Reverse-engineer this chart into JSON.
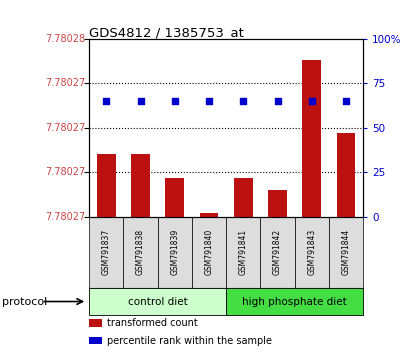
{
  "title": "GDS4812 / 1385753_at",
  "samples": [
    "GSM791837",
    "GSM791838",
    "GSM791839",
    "GSM791840",
    "GSM791841",
    "GSM791842",
    "GSM791843",
    "GSM791844"
  ],
  "bar_values_pct": [
    35,
    35,
    22,
    2,
    22,
    15,
    88,
    47
  ],
  "percentile_rank_pct": [
    65,
    65,
    65,
    65,
    65,
    65,
    65,
    65
  ],
  "ylim_right": [
    0,
    100
  ],
  "yticks_right": [
    0,
    25,
    50,
    75,
    100
  ],
  "ytick_labels_right": [
    "0",
    "25",
    "50",
    "75",
    "100%"
  ],
  "ytick_labels_left": [
    "7.78027",
    "7.78027",
    "7.78027",
    "7.78027",
    "7.78028"
  ],
  "bar_color": "#bb1111",
  "marker_color": "#0000cc",
  "protocol_groups": [
    {
      "label": "control diet",
      "start": 0,
      "end": 3,
      "color": "#ccffcc"
    },
    {
      "label": "high phosphate diet",
      "start": 4,
      "end": 7,
      "color": "#44dd44"
    }
  ],
  "protocol_label": "protocol",
  "legend_items": [
    {
      "label": "transformed count",
      "color": "#bb1111"
    },
    {
      "label": "percentile rank within the sample",
      "color": "#0000cc"
    }
  ],
  "sample_box_color": "#dddddd",
  "bg_color": "#ffffff",
  "plot_bg": "#ffffff",
  "tick_color_left": "#cc4444",
  "tick_color_right": "#0000cc",
  "title_color": "#000000",
  "grid_style": "dotted"
}
